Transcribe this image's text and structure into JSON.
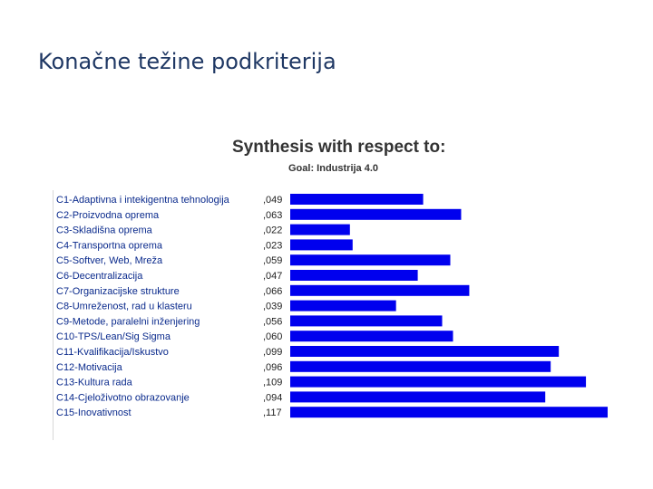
{
  "slide": {
    "title": "Konačne težine podkriterija"
  },
  "chart_data": {
    "type": "bar",
    "orientation": "horizontal",
    "title": "Synthesis with respect to:",
    "subtitle": "Goal: Industrija 4.0",
    "bar_color": "#0000ee",
    "label_color": "#0a2a8c",
    "categories": [
      "C1-Adaptivna i intekigentna tehnologija",
      "C2-Proizvodna oprema",
      "C3-Skladišna oprema",
      "C4-Transportna oprema",
      "C5-Softver, Web, Mreža",
      "C6-Decentralizacija",
      "C7-Organizacijske strukture",
      "C8-Umreženost, rad u klasteru",
      "C9-Metode, paralelni inženjering",
      "C10-TPS/Lean/Sig Sigma",
      "C11-Kvalifikacija/Iskustvo",
      "C12-Motivacija",
      "C13-Kultura rada",
      "C14-Cjeloživotno obrazovanje",
      "C15-Inovativnost"
    ],
    "values": [
      0.049,
      0.063,
      0.022,
      0.023,
      0.059,
      0.047,
      0.066,
      0.039,
      0.056,
      0.06,
      0.099,
      0.096,
      0.109,
      0.094,
      0.117
    ],
    "value_labels": [
      ",049",
      ",063",
      ",022",
      ",023",
      ",059",
      ",047",
      ",066",
      ",039",
      ",056",
      ",060",
      ",099",
      ",096",
      ",109",
      ",094",
      ",117"
    ],
    "xlim": [
      0,
      0.117
    ]
  }
}
